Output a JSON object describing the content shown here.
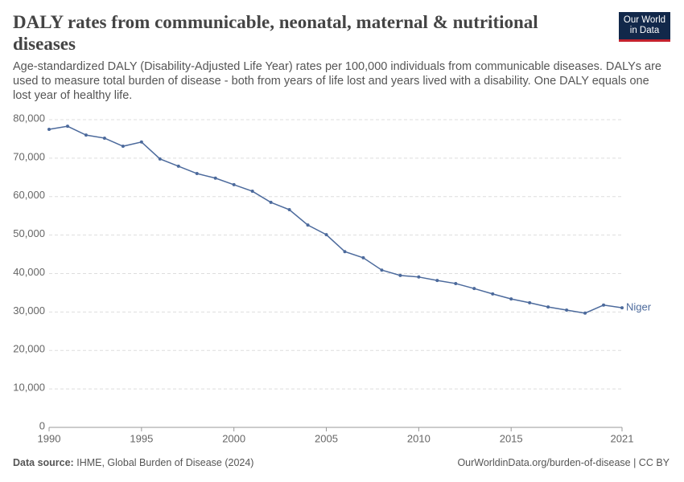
{
  "chart_data": {
    "type": "line",
    "title": "DALY rates from communicable, neonatal, maternal & nutritional diseases",
    "subtitle": "Age-standardized DALY (Disability-Adjusted Life Year) rates per 100,000 individuals from communicable diseases. DALYs are used to measure total burden of disease - both from years of life lost and years lived with a disability. One DALY equals one lost year of healthy life.",
    "x": [
      1990,
      1991,
      1992,
      1993,
      1994,
      1995,
      1996,
      1997,
      1998,
      1999,
      2000,
      2001,
      2002,
      2003,
      2004,
      2005,
      2006,
      2007,
      2008,
      2009,
      2010,
      2011,
      2012,
      2013,
      2014,
      2015,
      2016,
      2017,
      2018,
      2019,
      2020,
      2021
    ],
    "series": [
      {
        "name": "Niger",
        "color": "#4c6a9c",
        "values": [
          77500,
          78300,
          76000,
          75200,
          73100,
          74200,
          69800,
          67900,
          66000,
          64800,
          63100,
          61400,
          58500,
          56600,
          52600,
          50100,
          45700,
          44100,
          40900,
          39500,
          39100,
          38200,
          37400,
          36100,
          34700,
          33400,
          32400,
          31300,
          30500,
          29700,
          31800,
          31100
        ]
      }
    ],
    "xlim": [
      1990,
      2021
    ],
    "xticks": [
      1990,
      1995,
      2000,
      2005,
      2010,
      2015,
      2021
    ],
    "ylim": [
      0,
      80000
    ],
    "yticks": [
      0,
      {
        "value": 10000,
        "label": "10,000"
      },
      {
        "value": 20000,
        "label": "20,000"
      },
      {
        "value": 30000,
        "label": "30,000"
      },
      {
        "value": 40000,
        "label": "40,000"
      },
      {
        "value": 50000,
        "label": "50,000"
      },
      {
        "value": 60000,
        "label": "60,000"
      },
      {
        "value": 70000,
        "label": "70,000"
      },
      {
        "value": 80000,
        "label": "80,000"
      }
    ],
    "grid": true,
    "source_label": "Data source:",
    "source": "IHME, Global Burden of Disease (2024)",
    "url": "OurWorldinData.org/burden-of-disease | CC BY"
  },
  "logo": {
    "line1": "Our World",
    "line2": "in Data"
  }
}
